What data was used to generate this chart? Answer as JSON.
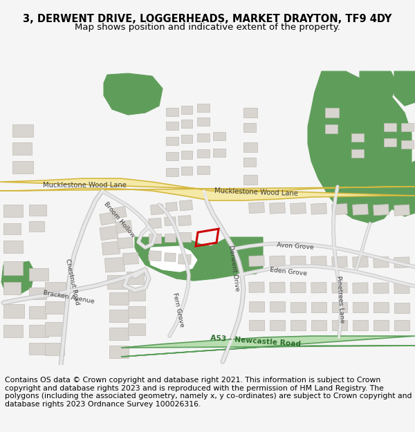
{
  "title_line1": "3, DERWENT DRIVE, LOGGERHEADS, MARKET DRAYTON, TF9 4DY",
  "title_line2": "Map shows position and indicative extent of the property.",
  "footer_text": "Contains OS data © Crown copyright and database right 2021. This information is subject to Crown copyright and database rights 2023 and is reproduced with the permission of HM Land Registry. The polygons (including the associated geometry, namely x, y co-ordinates) are subject to Crown copyright and database rights 2023 Ordnance Survey 100026316.",
  "bg_color": "#f5f5f5",
  "map_bg": "#ffffff",
  "road_yellow": "#f5e9a8",
  "road_yellow_border": "#d4b840",
  "road_green_fill": "#b8ddb0",
  "road_green_border": "#5a9e5a",
  "green_fill": "#5f9e5a",
  "building_fill": "#d8d5d0",
  "building_stroke": "#c0bbb5",
  "plot_stroke": "#cc0000",
  "street_label_color": "#404040",
  "title_fontsize": 10.5,
  "subtitle_fontsize": 9.5,
  "footer_fontsize": 7.8
}
